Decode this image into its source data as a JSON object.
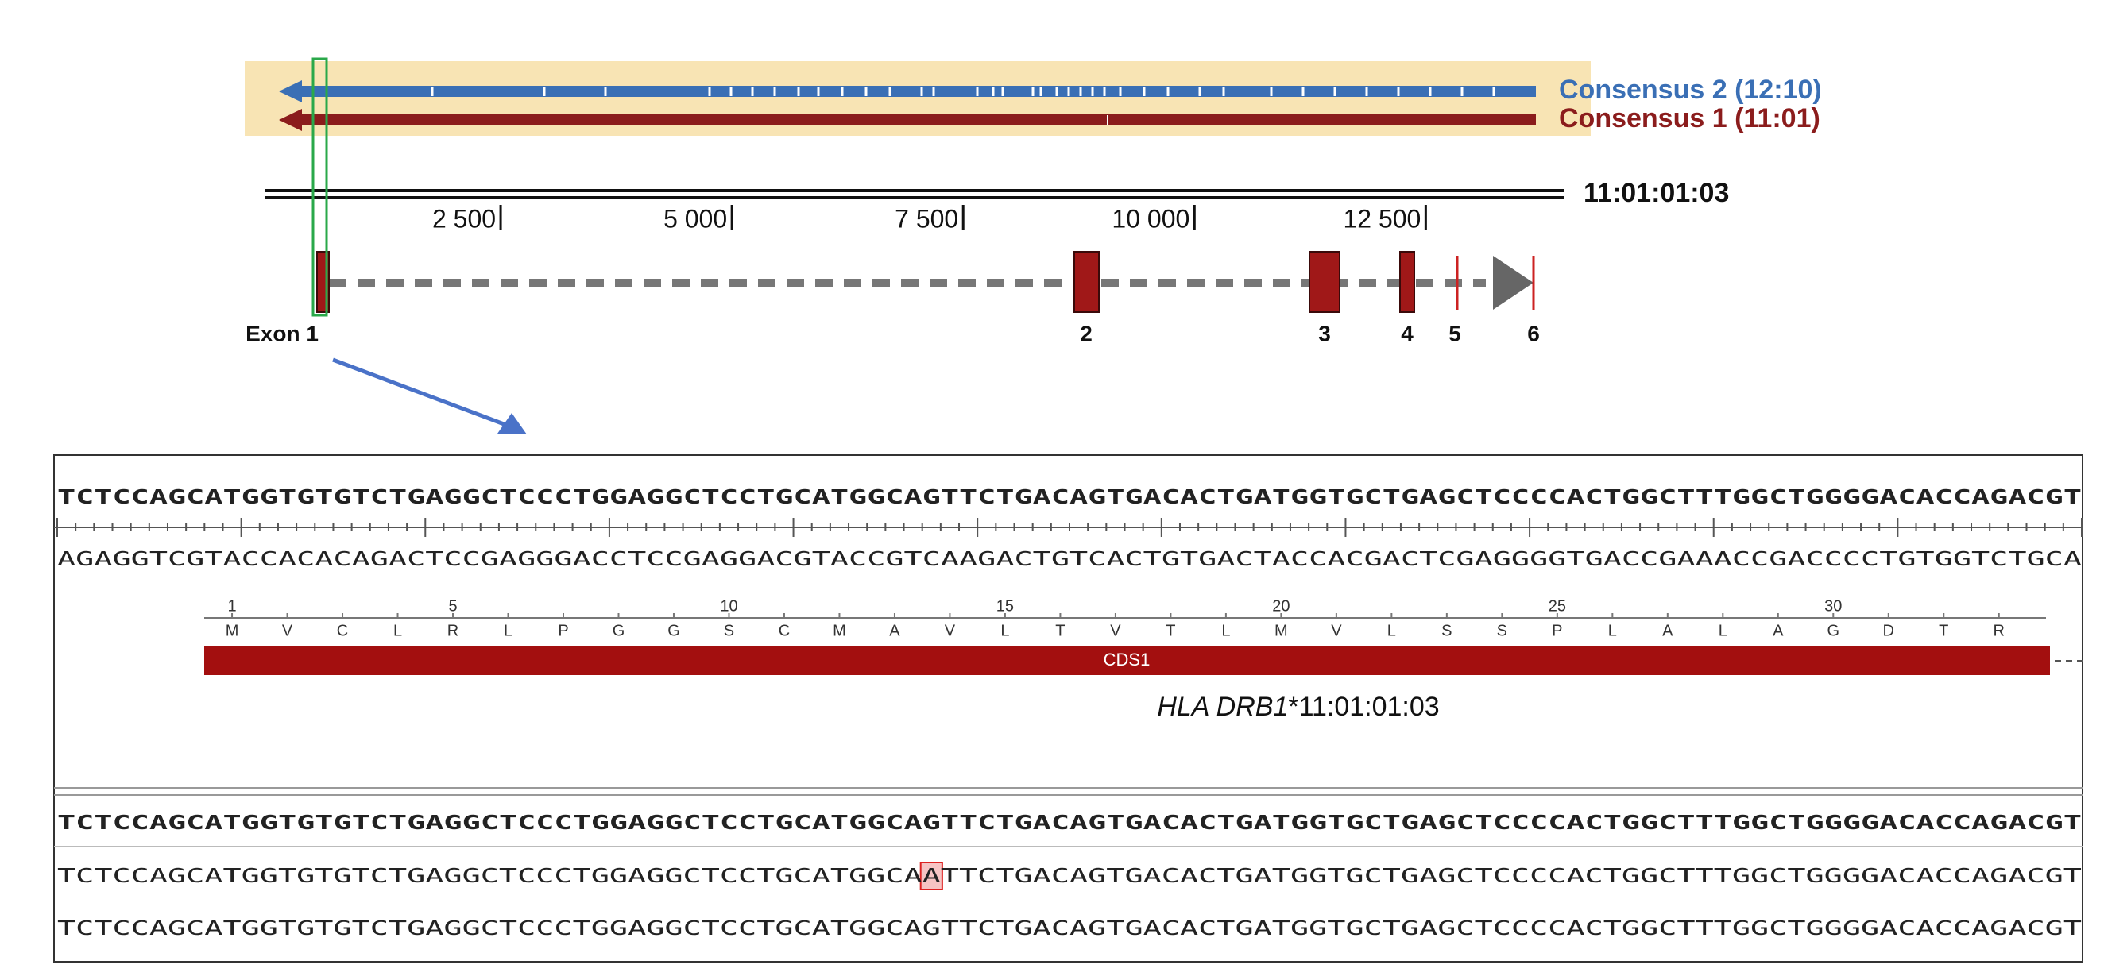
{
  "consensus": {
    "labels": [
      {
        "text": "Consensus 2 (12:10)",
        "color": "#3a6fb5"
      },
      {
        "text": "Consensus 1 (11:01)",
        "color": "#8b1c1c"
      }
    ]
  },
  "reference": {
    "label": "11:01:01:03"
  },
  "ruler": {
    "xlim": [
      0,
      14000
    ],
    "ticks": [
      {
        "value": 2500,
        "label": "2 500"
      },
      {
        "value": 5000,
        "label": "5 000"
      },
      {
        "value": 7500,
        "label": "7 500"
      },
      {
        "value": 10000,
        "label": "10 000"
      },
      {
        "value": 12500,
        "label": "12 500"
      }
    ]
  },
  "exons": {
    "labels": [
      "Exon 1",
      "2",
      "3",
      "4",
      "5",
      "6"
    ]
  },
  "sequence_view": {
    "forward": "TCTCCAGCATGGTGTGTCTGAGGCTCCCTGGAGGCTCCTGCATGGCAGTTCTGACAGTGACACTGATGGTGCTGAGCTCCCCACTGGCTTTGGCTGGGGACACCAGACGT",
    "reverse": "AGAGGTCGTACCACACAGACTCCGAGGGACCTCCGAGGACGTACCGTCAAGACTGTCACTGTGACTACCACGACTCGAGGGGTGACCGAAACCGACCCCTGTGGTCTGCA",
    "aa_numbers": [
      1,
      5,
      10,
      15,
      20,
      25,
      30
    ],
    "amino_acids": [
      "M",
      "V",
      "C",
      "L",
      "R",
      "L",
      "P",
      "G",
      "G",
      "S",
      "C",
      "M",
      "A",
      "V",
      "L",
      "T",
      "V",
      "T",
      "L",
      "M",
      "V",
      "L",
      "S",
      "S",
      "P",
      "L",
      "A",
      "L",
      "A",
      "G",
      "D",
      "T",
      "R"
    ],
    "cds_label": "CDS1",
    "gene": "HLA DRB1",
    "allele": "*11:01:01:03"
  },
  "alignment": {
    "reference": "TCTCCAGCATGGTGTGTCTGAGGCTCCCTGGAGGCTCCTGCATGGCAGTTCTGACAGTGACACTGATGGTGCTGAGCTCCCCACTGGCTTTGGCTGGGGACACCAGACGT",
    "read1": {
      "before": "TCTCCAGCATGGTGTGTCTGAGGCTCCCTGGAGGCTCCTGCATGGCA",
      "variant": "A",
      "after": "TTCTGACAGTGACACTGATGGTGCTGAGCTCCCCACTGGCTTTGGCTGGGGACACCAGACGT"
    },
    "read2": "TCTCCAGCATGGTGTGTCTGAGGCTCCCTGGAGGCTCCTGCATGGCAGTTCTGACAGTGACACTGATGGTGCTGAGCTCCCCACTGGCTTTGGCTGGGGACACCAGACGT"
  }
}
